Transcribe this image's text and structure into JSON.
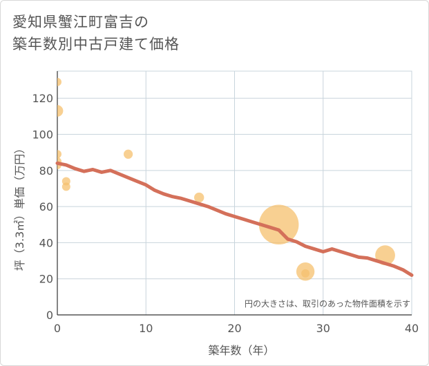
{
  "title_lines": [
    "愛知県蟹江町富吉の",
    "築年数別中古戸建て価格"
  ],
  "chart_data": {
    "type": "scatter",
    "title": "愛知県蟹江町富吉の築年数別中古戸建て価格",
    "xlabel": "築年数（年）",
    "ylabel": "坪（3.3㎡）単価（万円）",
    "xlim": [
      0,
      40
    ],
    "ylim": [
      0,
      135
    ],
    "xticks": [
      0,
      10,
      20,
      30,
      40
    ],
    "yticks": [
      0,
      20,
      40,
      60,
      80,
      100,
      120
    ],
    "grid": true,
    "note": "円の大きさは、取引のあった物件面積を示す",
    "colors": {
      "bubble": "#f5c06e",
      "trend": "#d4705a",
      "grid": "#c8d4dc",
      "axis": "#333333"
    },
    "points": [
      {
        "x": 0,
        "y": 129,
        "size": 1
      },
      {
        "x": 0,
        "y": 113,
        "size": 1.4
      },
      {
        "x": 0,
        "y": 89,
        "size": 1
      },
      {
        "x": 0,
        "y": 85,
        "size": 1
      },
      {
        "x": 0,
        "y": 83,
        "size": 1
      },
      {
        "x": 1,
        "y": 74,
        "size": 1
      },
      {
        "x": 1,
        "y": 71,
        "size": 1
      },
      {
        "x": 8,
        "y": 89,
        "size": 1.1
      },
      {
        "x": 16,
        "y": 65,
        "size": 1.2
      },
      {
        "x": 25,
        "y": 50,
        "size": 4.8
      },
      {
        "x": 28,
        "y": 24,
        "size": 2.2
      },
      {
        "x": 28,
        "y": 23,
        "size": 1
      },
      {
        "x": 37,
        "y": 33,
        "size": 2.4
      }
    ],
    "trend": {
      "x": [
        0,
        1,
        2,
        3,
        4,
        5,
        6,
        7,
        8,
        9,
        10,
        11,
        12,
        13,
        14,
        15,
        16,
        17,
        18,
        19,
        20,
        21,
        22,
        23,
        24,
        25,
        26,
        27,
        28,
        29,
        30,
        31,
        32,
        33,
        34,
        35,
        36,
        37,
        38,
        39,
        40
      ],
      "y": [
        84,
        83,
        81,
        79.5,
        80.5,
        79,
        80,
        78,
        76,
        74,
        72,
        69,
        67,
        65.5,
        64.5,
        63,
        61.5,
        60,
        58,
        56,
        54.5,
        53,
        51.5,
        50,
        48.5,
        47,
        42,
        40.5,
        38,
        36.5,
        35,
        36.5,
        35,
        33.5,
        32,
        31.5,
        30,
        28.5,
        27,
        25,
        22
      ]
    }
  }
}
